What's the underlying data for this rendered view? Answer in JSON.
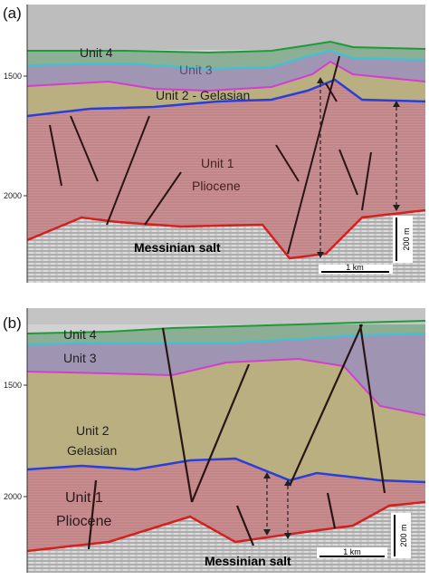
{
  "figure": {
    "panel_a": {
      "label": "(a)",
      "depth_ticks": [
        "1500",
        "2000"
      ],
      "units": {
        "unit4": "Unit 4",
        "unit3": "Unit 3",
        "unit2": "Unit 2 - Gelasian",
        "unit1_line1": "Unit 1",
        "unit1_line2": "Pliocene"
      },
      "salt": "Messinian salt",
      "scale_horizontal": "1 km",
      "scale_vertical": "200 m"
    },
    "panel_b": {
      "label": "(b)",
      "depth_ticks": [
        "1500",
        "2000"
      ],
      "units": {
        "unit4": "Unit 4",
        "unit3": "Unit 3",
        "unit2_line1": "Unit 2",
        "unit2_line2": "Gelasian",
        "unit1_line1": "Unit 1",
        "unit1_line2": "Pliocene"
      },
      "salt": "Messinian salt",
      "scale_horizontal": "1 km",
      "scale_vertical": "200 m"
    },
    "colors": {
      "unit4": "#7fa88a",
      "unit3": "#9a8fb0",
      "unit2": "#b6ab78",
      "unit1": "#c97c80",
      "salt": "#b9b9b9",
      "top_green": "#1f9a3a",
      "cyan": "#36c6d6",
      "magenta": "#d23fd0",
      "blue": "#2b3fd6",
      "red": "#d42020",
      "fault": "#2a1515"
    }
  }
}
